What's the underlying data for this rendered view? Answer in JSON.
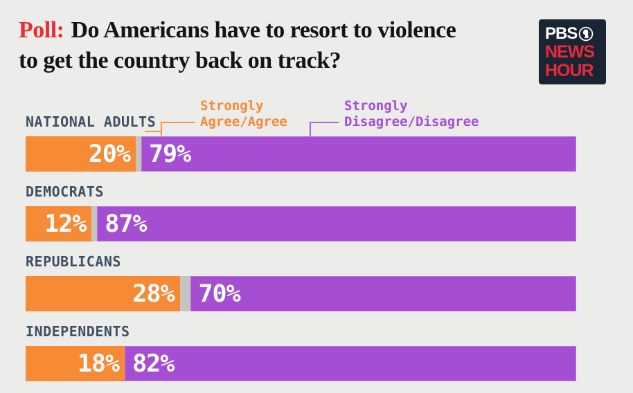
{
  "header": {
    "title_prefix": "Poll:",
    "title_line1": "Do Americans have to resort to violence",
    "title_line2": "to get the country back on track?"
  },
  "logo": {
    "text_top": "PBS",
    "text_mid": "NEWS",
    "text_bottom": "HOUR"
  },
  "legend": {
    "agree_label": "Strongly\nAgree/Agree",
    "disagree_label": "Strongly\nDisagree/Disagree"
  },
  "colors": {
    "background": "#ECECEA",
    "agree": "#F68A35",
    "disagree": "#A54DD3",
    "gap": "#C5C4C2",
    "category_label": "#3E5062",
    "title_red": "#EC2B33",
    "logo_bg": "#1B2433",
    "logo_red": "#E7293A",
    "bar_value_text": "#FFFFFF"
  },
  "chart_data": {
    "type": "bar",
    "orientation": "horizontal",
    "stacked": true,
    "unit": "%",
    "xlim": [
      0,
      100
    ],
    "grid": false,
    "legend_position": "top",
    "value_labels": "inside",
    "categories": [
      "NATIONAL ADULTS",
      "DEMOCRATS",
      "REPUBLICANS",
      "INDEPENDENTS"
    ],
    "series": [
      {
        "name": "Strongly Agree/Agree",
        "color": "#F68A35",
        "values": [
          20,
          12,
          28,
          18
        ]
      },
      {
        "name": "Strongly Disagree/Disagree",
        "color": "#A54DD3",
        "values": [
          79,
          87,
          70,
          82
        ]
      }
    ]
  }
}
